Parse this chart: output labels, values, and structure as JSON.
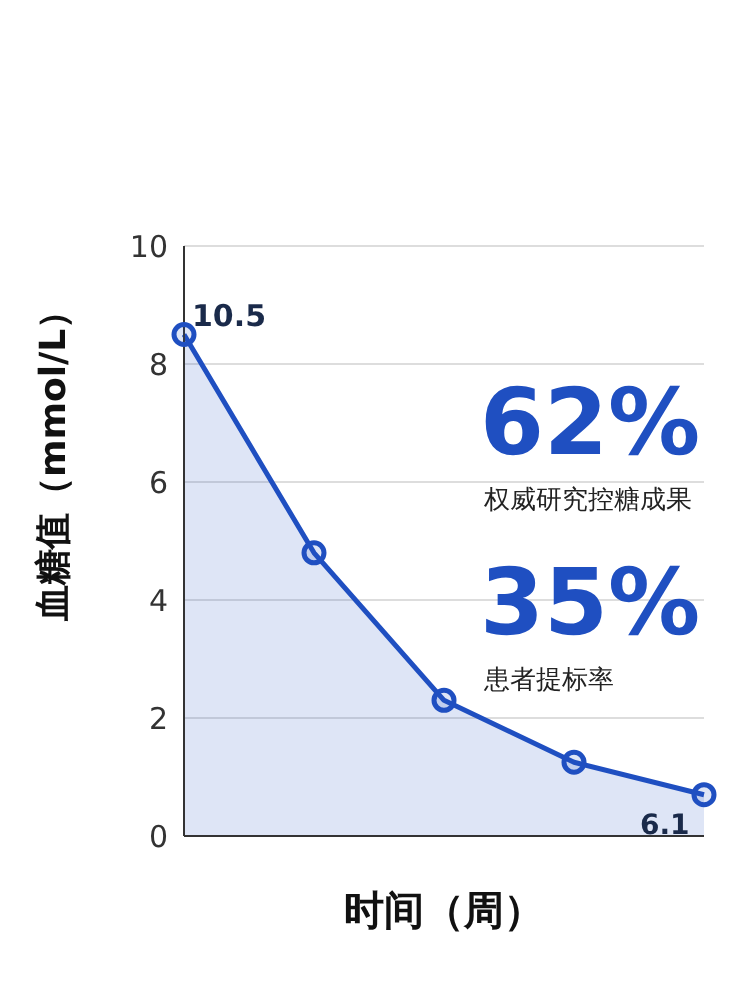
{
  "chart_data": {
    "type": "area",
    "xlabel": "时间（周）",
    "ylabel": "血糖值（mmol/L）",
    "categories": [
      null,
      null,
      null,
      null,
      null
    ],
    "series": [
      {
        "color": "#1f4fc1",
        "values": [
          8.5,
          4.8,
          2.3,
          1.25,
          0.7
        ]
      }
    ],
    "ylim": [
      0,
      10
    ],
    "yticks": [
      0,
      2,
      4,
      6,
      8,
      10
    ],
    "grid": "y",
    "marker": "circle",
    "line_style": "solid",
    "annotations": [
      "10.5",
      "62%",
      "权威研究控糖成果",
      "35%",
      "患者提标率",
      "6.1"
    ]
  }
}
